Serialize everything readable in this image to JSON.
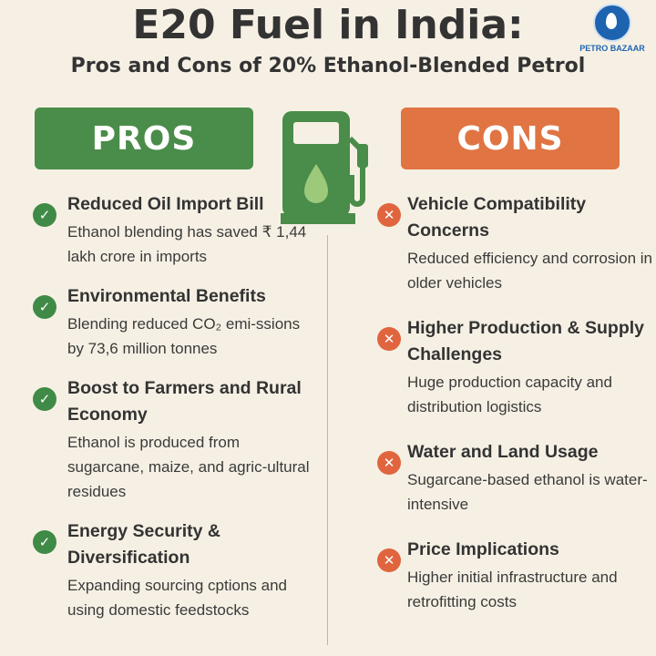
{
  "header": {
    "title": "E20 Fuel in India:",
    "subtitle": "Pros and Cons of 20% Ethanol-Blended Petrol",
    "logo_text": "PETRO BAZAAR"
  },
  "pros": {
    "label": "PROS",
    "items": [
      {
        "heading": "Reduced Oil Import Bill",
        "body": "Ethanol blending has saved ₹ 1,44 lakh crore in imports"
      },
      {
        "heading": "Environmental Benefits",
        "body": "Blending reduced CO₂ emi-ssions by 73,6 million tonnes"
      },
      {
        "heading": "Boost to Farmers and Rural Economy",
        "body": "Ethanol is produced from sugarcane, maize, and agric-ultural residues"
      },
      {
        "heading": "Energy Security & Diversification",
        "body": "Expanding sourcing cptions and using domestic feedstocks"
      }
    ]
  },
  "cons": {
    "label": "CONS",
    "items": [
      {
        "heading": "Vehicle Compatibility Concerns",
        "body": "Reduced efficiency and corrosion in older vehicles"
      },
      {
        "heading": "Higher Production & Supply Challenges",
        "body": "Huge production capacity and distribution logistics"
      },
      {
        "heading": "Water and Land Usage",
        "body": "Sugarcane-based ethanol is water-intensive"
      },
      {
        "heading": "Price Implications",
        "body": "Higher initial infrastructure and retrofitting costs"
      }
    ]
  },
  "colors": {
    "pros": "#4a8c4a",
    "cons": "#e07443",
    "background": "#f6f0e4"
  }
}
